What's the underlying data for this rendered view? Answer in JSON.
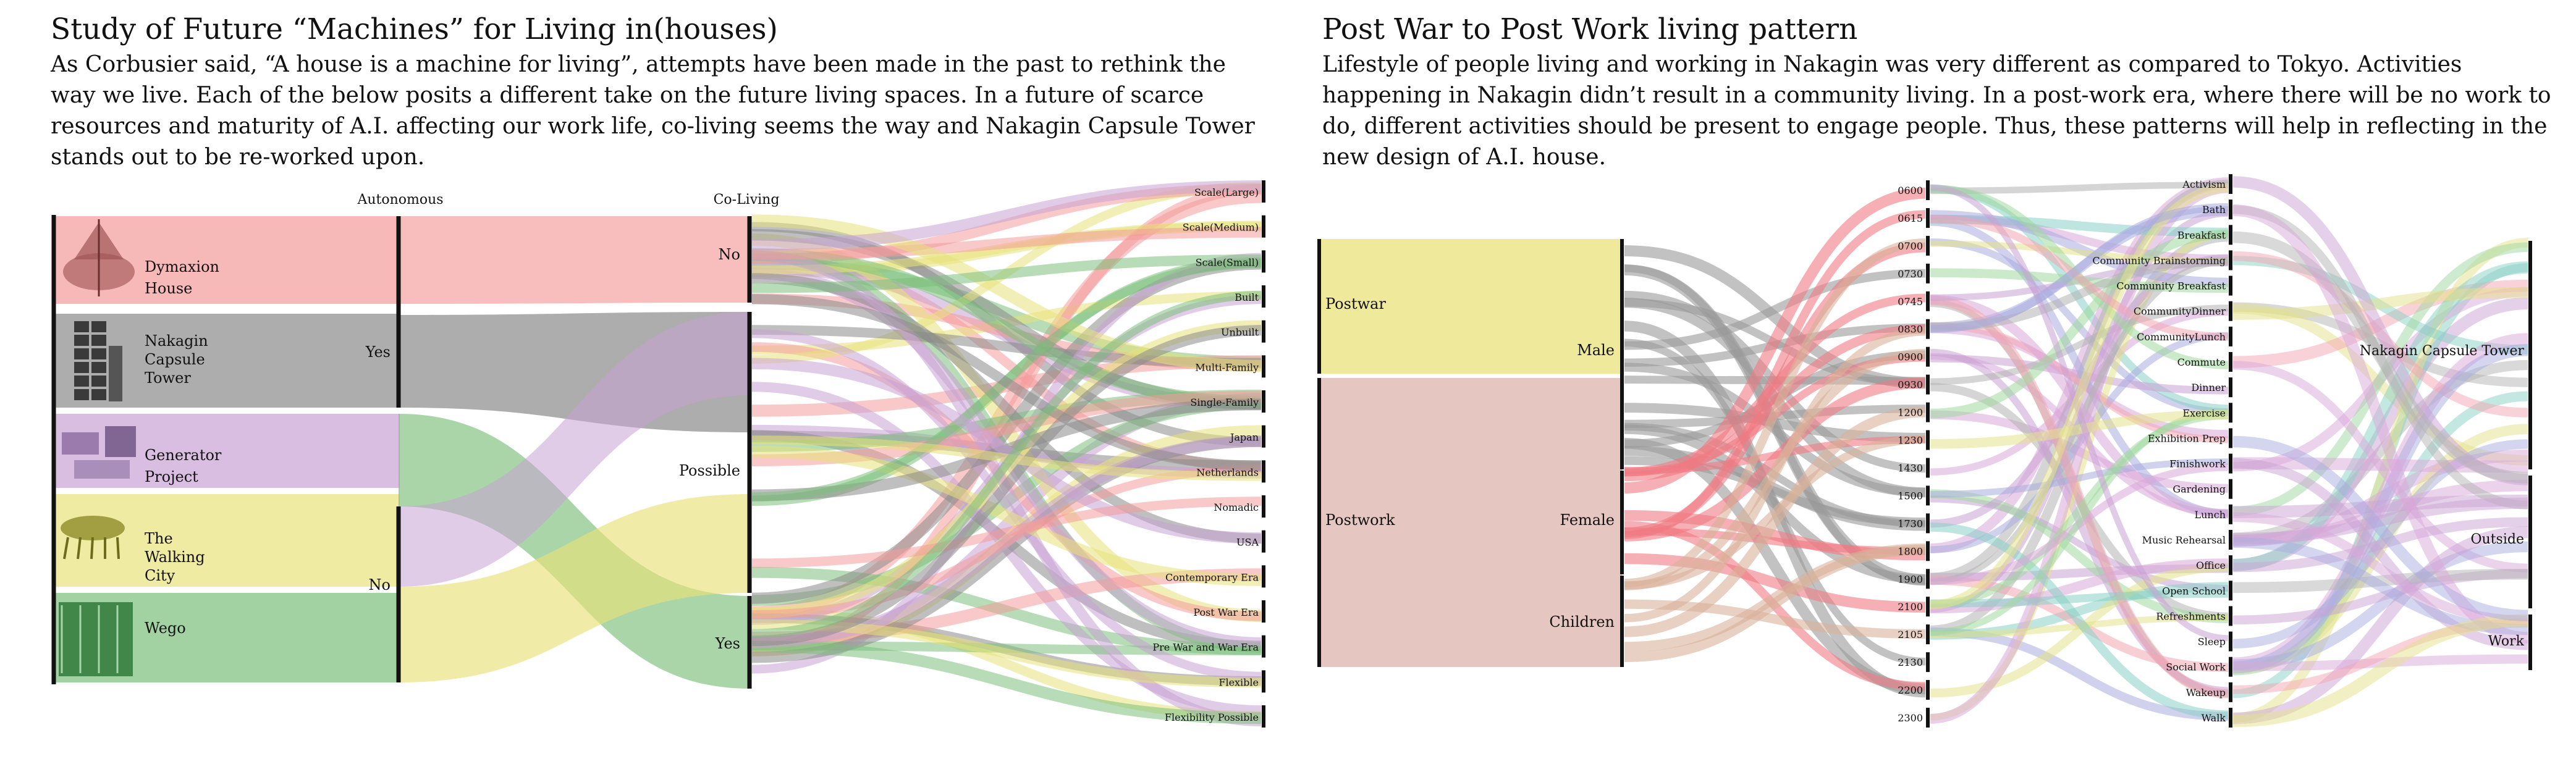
{
  "left": {
    "title": "Study of Future “Machines” for Living in(houses)",
    "description": "As Corbusier said, “A house is a machine for living”, attempts have been made in the past to rethink the way we live. Each of the below posits a different take on the future living spaces. In a future of scarce resources and maturity of A.I. affecting our work life, co-living seems the way and Nakagin Capsule Tower stands out to be re-worked upon.",
    "axis_labels": [
      "Autonomous",
      "Co-Living"
    ],
    "projects": [
      {
        "label": "Dymaxion House",
        "lines": [
          "Dymaxion",
          "House"
        ],
        "color": "#f49a9a",
        "icon": "dymaxion-house-icon"
      },
      {
        "label": "Nakagin Capsule Tower",
        "lines": [
          "Nakagin",
          "Capsule",
          "Tower"
        ],
        "color": "#8a8a8a",
        "icon": "nakagin-tower-icon"
      },
      {
        "label": "Generator Project",
        "lines": [
          "Generator",
          "Project"
        ],
        "color": "#c9a3d4",
        "icon": "generator-project-icon"
      },
      {
        "label": "The Walking City",
        "lines": [
          "The",
          "Walking",
          "City"
        ],
        "color": "#e8e27a",
        "icon": "walking-city-icon"
      },
      {
        "label": "Wego",
        "lines": [
          "Wego"
        ],
        "color": "#7bbf7b",
        "icon": "wego-icon"
      }
    ],
    "autonomous_nodes": [
      "Yes",
      "No"
    ],
    "coliving_nodes": [
      "No",
      "Possible",
      "Yes"
    ],
    "attributes": [
      "Scale(Large)",
      "Scale(Medium)",
      "Scale(Small)",
      "Built",
      "Unbuilt",
      "Multi-Family",
      "Single-Family",
      "Japan",
      "Netherlands",
      "Nomadic",
      "USA",
      "Contemporary Era",
      "Post War Era",
      "Pre War and War Era",
      "Flexible",
      "Flexibility Possible"
    ]
  },
  "right": {
    "title": "Post War to Post Work living pattern",
    "description": "Lifestyle of people living and working in Nakagin was very different as compared to Tokyo. Activities happening in Nakagin didn’t result in a community living. In a post-work era, where there will be no work to do, different activities should be present to engage people. Thus, these patterns will help in reflecting in the new design of  A.I. house.",
    "eras": [
      "Postwar",
      "Postwork"
    ],
    "groups": [
      "Male",
      "Female",
      "Children"
    ],
    "group_colors": [
      "#9a9a9a",
      "#f07a82",
      "#d8b09a"
    ],
    "times": [
      "0600",
      "0615",
      "0700",
      "0730",
      "0745",
      "0830",
      "0900",
      "0930",
      "1200",
      "1230",
      "1430",
      "1500",
      "1730",
      "1800",
      "1900",
      "2100",
      "2105",
      "2130",
      "2200",
      "2300"
    ],
    "activities": [
      "Activism",
      "Bath",
      "Breakfast",
      "Community Brainstorming",
      "Community Breakfast",
      "CommunityDinner",
      "CommunityLunch",
      "Commute",
      "Dinner",
      "Exercise",
      "Exhibition Prep",
      "Finishwork",
      "Gardening",
      "Lunch",
      "Music Rehearsal",
      "Office",
      "Open School",
      "Refreshments",
      "Sleep",
      "Social Work",
      "Wakeup",
      "Walk"
    ],
    "places": [
      "Nakagin Capsule Tower",
      "Outside",
      "Work"
    ],
    "flow_palette": [
      "#d9a8d9",
      "#b3b3b3",
      "#f3a6b3",
      "#e4e28a",
      "#9fd89f",
      "#88d0c4",
      "#a9acdf",
      "#c9a3d4"
    ]
  }
}
